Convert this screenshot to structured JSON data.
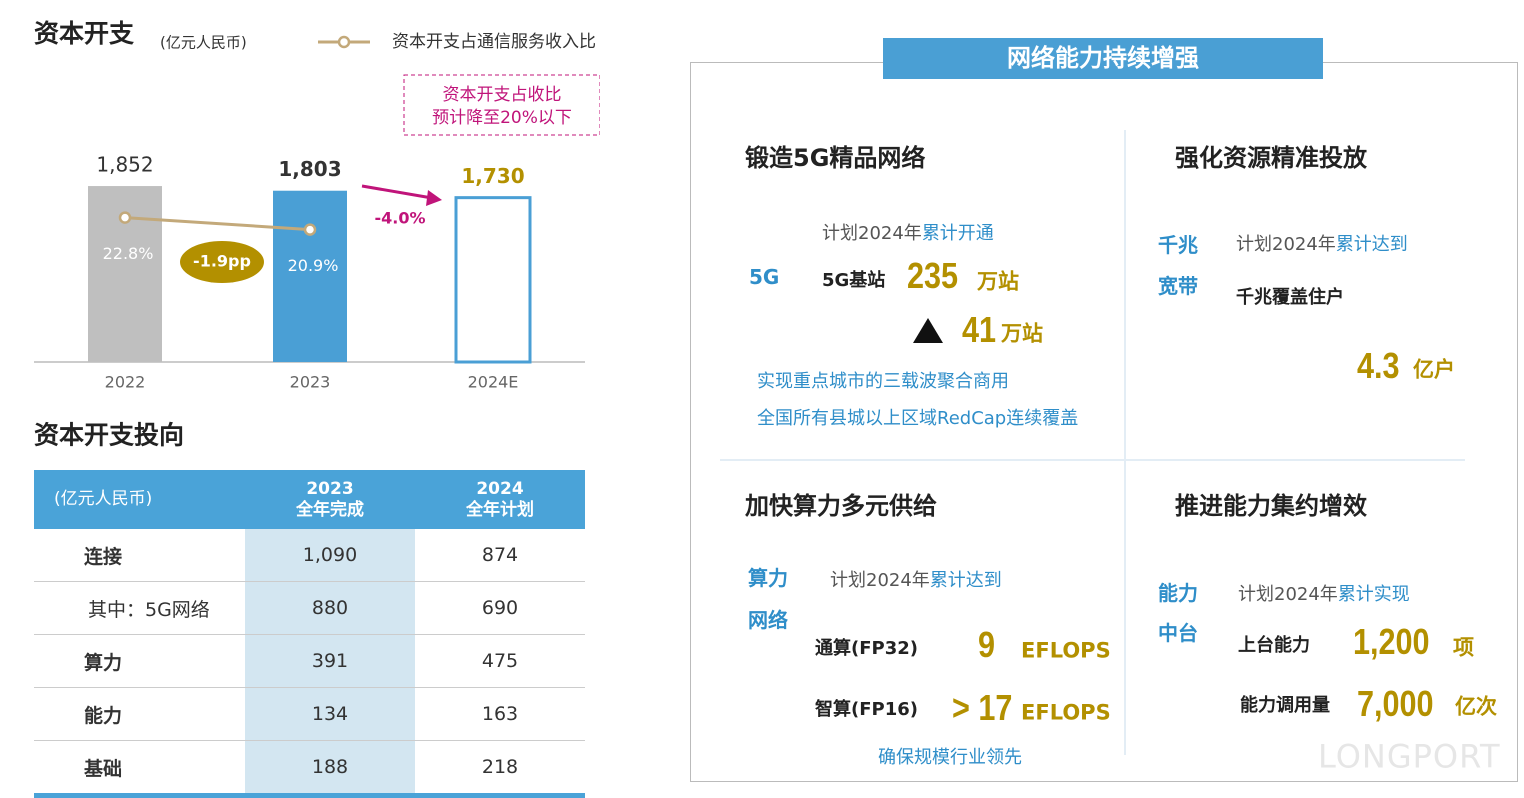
{
  "chart_data": {
    "type": "bar",
    "title": "资本开支",
    "subtitle": "(亿元人民币)",
    "categories": [
      "2022",
      "2023",
      "2024E"
    ],
    "values": [
      1852,
      1803,
      1730
    ],
    "value_labels": [
      "1,852",
      "1,803",
      "1,730"
    ],
    "colors": [
      "#bfbfbf",
      "#4a9fd5",
      "#ffffff"
    ],
    "outline_color": "#4a9fd5",
    "ylim": [
      0,
      2000
    ],
    "series": [
      {
        "name": "资本开支占通信服务收入比",
        "type": "line",
        "color": "#c3a97a",
        "axis": "y2",
        "values": [
          22.8,
          20.9,
          null
        ],
        "value_labels": [
          "22.8%",
          "20.9%",
          null
        ]
      }
    ],
    "y2lim": [
      0,
      30
    ],
    "annotations": {
      "pp_change": "-1.9pp",
      "growth": "-4.0%",
      "note": [
        "资本开支占收比",
        "预计降至20%以下"
      ]
    }
  },
  "table": {
    "title": "资本开支投向",
    "header": [
      "(亿元人民币)",
      [
        "2023",
        "全年完成"
      ],
      [
        "2024",
        "全年计划"
      ]
    ],
    "rows": [
      [
        "连接",
        "1,090",
        "874"
      ],
      [
        "其中：5G网络",
        "880",
        "690"
      ],
      [
        "算力",
        "391",
        "475"
      ],
      [
        "能力",
        "134",
        "163"
      ],
      [
        "基础",
        "188",
        "218"
      ]
    ]
  },
  "panel": {
    "title": "网络能力持续增强",
    "quadrants": [
      {
        "heading": "锻造5G精品网络",
        "tag": [
          "5G"
        ],
        "plan": [
          "计划2024年",
          "累计开通"
        ],
        "items": [
          {
            "label": "5G基站",
            "value": "235",
            "unit": "万站"
          },
          {
            "value": "41",
            "unit": "万站"
          }
        ],
        "notes": [
          "实现重点城市的三载波聚合商用",
          "全国所有县城以上区域RedCap连续覆盖"
        ]
      },
      {
        "heading": "强化资源精准投放",
        "tag": [
          "千兆",
          "宽带"
        ],
        "plan": [
          "计划2024年",
          "累计达到"
        ],
        "items": [
          {
            "label": "千兆覆盖住户",
            "value": "4.3",
            "unit": "亿户"
          }
        ]
      },
      {
        "heading": "加快算力多元供给",
        "tag": [
          "算力",
          "网络"
        ],
        "plan": [
          "计划2024年",
          "累计达到"
        ],
        "items": [
          {
            "label": "通算(FP32)",
            "value": "9",
            "unit": "EFLOPS"
          },
          {
            "label": "智算(FP16)",
            "value": "> 17",
            "unit": "EFLOPS"
          }
        ],
        "notes": [
          "确保规模行业领先"
        ]
      },
      {
        "heading": "推进能力集约增效",
        "tag": [
          "能力",
          "中台"
        ],
        "plan": [
          "计划2024年",
          "累计实现"
        ],
        "items": [
          {
            "label": "上台能力",
            "value": "1,200",
            "unit": "项"
          },
          {
            "label": "能力调用量",
            "value": "7,000",
            "unit": "亿次"
          }
        ]
      }
    ]
  },
  "watermark": "LONGPORT"
}
